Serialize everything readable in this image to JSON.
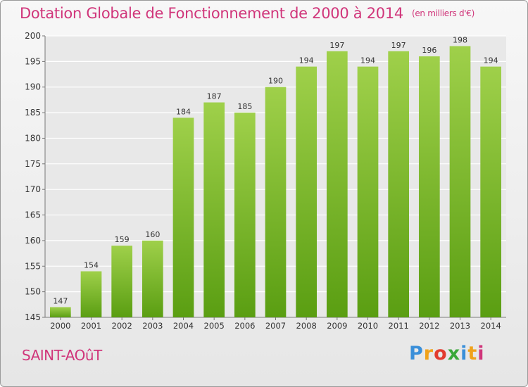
{
  "header": {
    "title": "Dotation Globale de Fonctionnement de 2000 à 2014",
    "unit": "(en milliers d'€)"
  },
  "footer": {
    "commune": "SAINT-AOûT",
    "logo_letters": [
      "P",
      "r",
      "o",
      "x",
      "i",
      "t",
      "i"
    ],
    "logo_colors": [
      "#3a8fd9",
      "#f0a21b",
      "#e23b2e",
      "#3aa83a",
      "#3a8fd9",
      "#f0a21b",
      "#d0357a"
    ]
  },
  "colors": {
    "title": "#d0357a",
    "bar_top": "#9fd04a",
    "bar_bottom": "#5a9e12",
    "grid": "#ffffff"
  },
  "chart_data": {
    "type": "bar",
    "title": "Dotation Globale de Fonctionnement de 2000 à 2014",
    "subtitle": "(en milliers d'€)",
    "categories": [
      "2000",
      "2001",
      "2002",
      "2003",
      "2004",
      "2005",
      "2006",
      "2007",
      "2008",
      "2009",
      "2010",
      "2011",
      "2012",
      "2013",
      "2014"
    ],
    "values": [
      147,
      154,
      159,
      160,
      184,
      187,
      185,
      190,
      194,
      197,
      194,
      197,
      196,
      198,
      194
    ],
    "ylim": [
      145,
      200
    ],
    "yticks": [
      145,
      150,
      155,
      160,
      165,
      170,
      175,
      180,
      185,
      190,
      195,
      200
    ],
    "grid": true,
    "xlabel": "",
    "ylabel": ""
  }
}
